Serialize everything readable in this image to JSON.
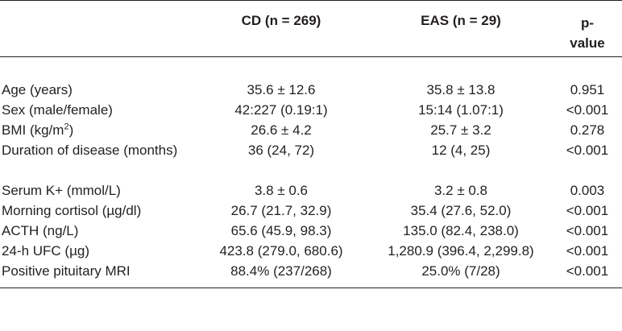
{
  "table": {
    "headers": {
      "label": "",
      "cd": "CD (n = 269)",
      "eas": "EAS (n = 29)",
      "p_line1": "p-",
      "p_line2": "value"
    },
    "rows": [
      {
        "label": "Age (years)",
        "cd": "35.6 ± 12.6",
        "eas": "35.8 ± 13.8",
        "p": "0.951"
      },
      {
        "label": "Sex (male/female)",
        "cd": "42:227 (0.19:1)",
        "eas": "15:14 (1.07:1)",
        "p": "<0.001"
      },
      {
        "label_pre": "BMI (kg/m",
        "label_sup": "2",
        "label_post": ")",
        "cd": "26.6 ± 4.2",
        "eas": "25.7 ± 3.2",
        "p": "0.278"
      },
      {
        "label": "Duration of disease (months)",
        "cd": "36 (24, 72)",
        "eas": "12 (4, 25)",
        "p": "<0.001"
      },
      {
        "label": "Serum K+ (mmol/L)",
        "cd": "3.8 ± 0.6",
        "eas": "3.2 ± 0.8",
        "p": "0.003"
      },
      {
        "label": "Morning cortisol (µg/dl)",
        "cd": "26.7 (21.7, 32.9)",
        "eas": "35.4 (27.6, 52.0)",
        "p": "<0.001"
      },
      {
        "label": "ACTH (ng/L)",
        "cd": "65.6 (45.9, 98.3)",
        "eas": "135.0 (82.4, 238.0)",
        "p": "<0.001"
      },
      {
        "label": "24-h UFC (µg)",
        "cd": "423.8 (279.0, 680.6)",
        "eas": "1,280.9 (396.4, 2,299.8)",
        "p": "<0.001"
      },
      {
        "label": "Positive pituitary MRI",
        "cd": "88.4% (237/268)",
        "eas": "25.0% (7/28)",
        "p": "<0.001"
      }
    ]
  }
}
